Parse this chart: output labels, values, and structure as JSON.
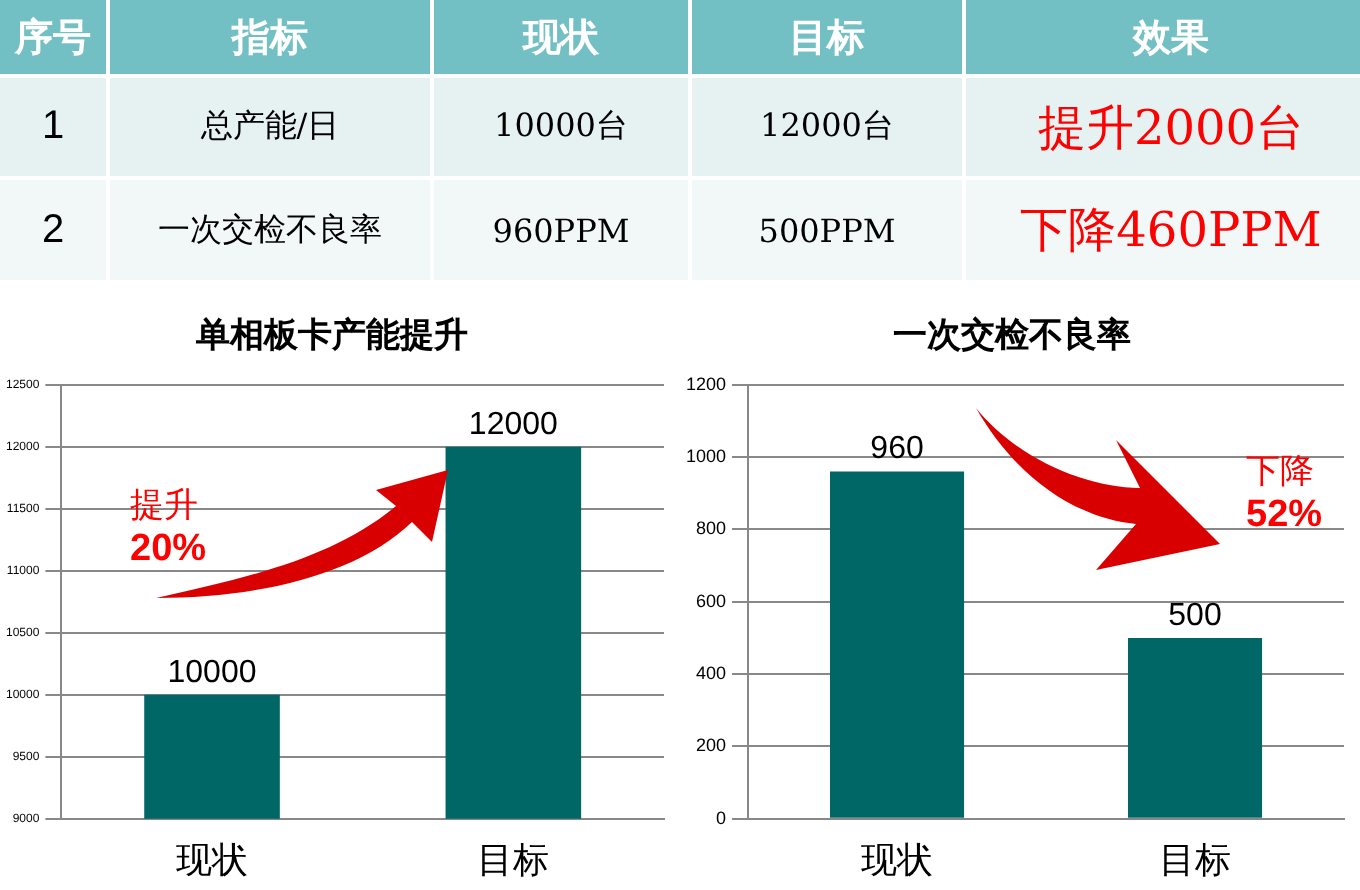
{
  "chart_data": [
    {
      "type": "other",
      "categories": [
        "序号",
        "指标",
        "现状",
        "目标",
        "效果"
      ],
      "annotations": [
        "1",
        "总产能/日",
        "10000台",
        "12000台",
        "提升2000台",
        "2",
        "一次交检不良率",
        "960PPM",
        "500PPM",
        "下降460PPM"
      ]
    },
    {
      "type": "bar",
      "title": "单相板卡产能提升",
      "categories": [
        "现状",
        "目标"
      ],
      "values": [
        10000,
        12000
      ],
      "color": "#006666",
      "ylim": [
        9000,
        12500
      ],
      "yticks": [
        9000,
        9500,
        10000,
        10500,
        11000,
        11500,
        12000,
        12500
      ],
      "grid": "y",
      "data_labels": true,
      "annotations": [
        "提升 20%"
      ]
    },
    {
      "type": "bar",
      "title": "一次交检不良率",
      "categories": [
        "现状",
        "目标"
      ],
      "values": [
        960,
        500
      ],
      "color": "#006666",
      "ylim": [
        0,
        1200
      ],
      "yticks": [
        0,
        200,
        400,
        600,
        800,
        1000,
        1200
      ],
      "grid": "y",
      "data_labels": true,
      "annotations": [
        "下降 52%"
      ]
    }
  ]
}
